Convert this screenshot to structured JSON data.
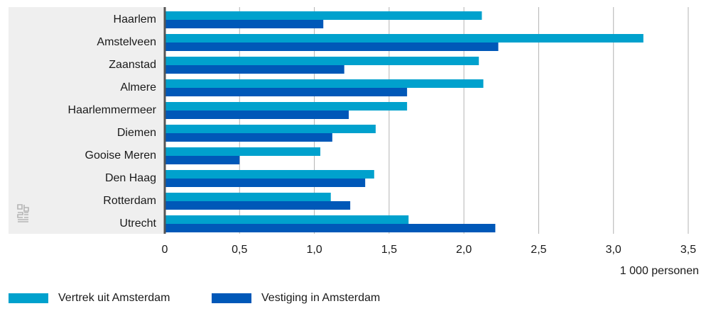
{
  "chart_data": {
    "type": "bar",
    "orientation": "horizontal",
    "categories": [
      "Haarlem",
      "Amstelveen",
      "Zaanstad",
      "Almere",
      "Haarlemmermeer",
      "Diemen",
      "Gooise Meren",
      "Den Haag",
      "Rotterdam",
      "Utrecht"
    ],
    "series": [
      {
        "name": "Vertrek uit Amsterdam",
        "color": "#00a1cd",
        "values": [
          2.12,
          3.2,
          2.1,
          2.13,
          1.62,
          1.41,
          1.04,
          1.4,
          1.11,
          1.63
        ]
      },
      {
        "name": "Vestiging in Amsterdam",
        "color": "#0058b8",
        "values": [
          1.06,
          2.23,
          1.2,
          1.62,
          1.23,
          1.12,
          0.5,
          1.34,
          1.24,
          2.21
        ]
      }
    ],
    "xlim": [
      0,
      3.5
    ],
    "xticks": [
      0,
      0.5,
      1.0,
      1.5,
      2.0,
      2.5,
      3.0,
      3.5
    ],
    "xtick_labels": [
      "0",
      "0,5",
      "1,0",
      "1,5",
      "2,0",
      "2,5",
      "3,0",
      "3,5"
    ],
    "xlabel": "1 000 personen",
    "grid": true,
    "legend_position": "bottom-left"
  }
}
